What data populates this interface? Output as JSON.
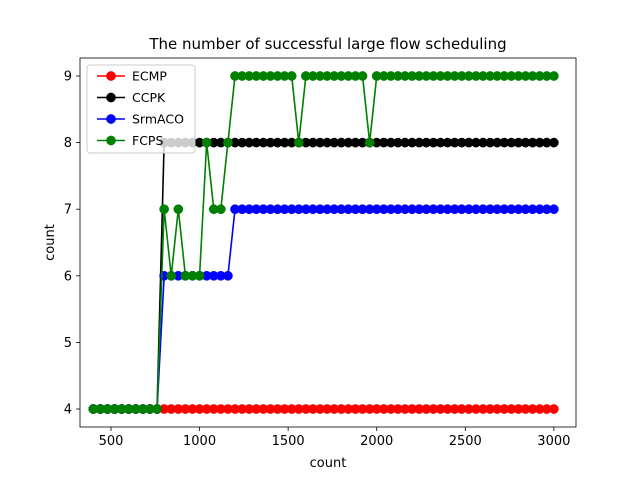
{
  "chart_data": {
    "type": "line",
    "title": "The number of successful large flow scheduling",
    "xlabel": "count",
    "ylabel": "count",
    "xlim": [
      325,
      3125
    ],
    "ylim": [
      3.73,
      9.27
    ],
    "xticks": [
      500,
      1000,
      1500,
      2000,
      2500,
      3000
    ],
    "yticks": [
      4,
      5,
      6,
      7,
      8,
      9
    ],
    "grid": false,
    "legend_position": "top-left",
    "x": [
      400,
      440,
      480,
      520,
      560,
      600,
      640,
      680,
      720,
      760,
      800,
      840,
      880,
      920,
      960,
      1000,
      1040,
      1080,
      1120,
      1160,
      1200,
      1240,
      1280,
      1320,
      1360,
      1400,
      1440,
      1480,
      1520,
      1560,
      1600,
      1640,
      1680,
      1720,
      1760,
      1800,
      1840,
      1880,
      1920,
      1960,
      2000,
      2040,
      2080,
      2120,
      2160,
      2200,
      2240,
      2280,
      2320,
      2360,
      2400,
      2440,
      2480,
      2520,
      2560,
      2600,
      2640,
      2680,
      2720,
      2760,
      2800,
      2840,
      2880,
      2920,
      2960,
      3000
    ],
    "series": [
      {
        "name": "ECMP",
        "color": "#ff0000",
        "values": [
          4,
          4,
          4,
          4,
          4,
          4,
          4,
          4,
          4,
          4,
          4,
          4,
          4,
          4,
          4,
          4,
          4,
          4,
          4,
          4,
          4,
          4,
          4,
          4,
          4,
          4,
          4,
          4,
          4,
          4,
          4,
          4,
          4,
          4,
          4,
          4,
          4,
          4,
          4,
          4,
          4,
          4,
          4,
          4,
          4,
          4,
          4,
          4,
          4,
          4,
          4,
          4,
          4,
          4,
          4,
          4,
          4,
          4,
          4,
          4,
          4,
          4,
          4,
          4,
          4,
          4
        ]
      },
      {
        "name": "CCPK",
        "color": "#000000",
        "values": [
          4,
          4,
          4,
          4,
          4,
          4,
          4,
          4,
          4,
          4,
          8,
          8,
          8,
          8,
          8,
          8,
          8,
          8,
          8,
          8,
          8,
          8,
          8,
          8,
          8,
          8,
          8,
          8,
          8,
          8,
          8,
          8,
          8,
          8,
          8,
          8,
          8,
          8,
          8,
          8,
          8,
          8,
          8,
          8,
          8,
          8,
          8,
          8,
          8,
          8,
          8,
          8,
          8,
          8,
          8,
          8,
          8,
          8,
          8,
          8,
          8,
          8,
          8,
          8,
          8,
          8
        ]
      },
      {
        "name": "SrmACO",
        "color": "#0000ff",
        "values": [
          4,
          4,
          4,
          4,
          4,
          4,
          4,
          4,
          4,
          4,
          6,
          6,
          6,
          6,
          6,
          6,
          6,
          6,
          6,
          6,
          7,
          7,
          7,
          7,
          7,
          7,
          7,
          7,
          7,
          7,
          7,
          7,
          7,
          7,
          7,
          7,
          7,
          7,
          7,
          7,
          7,
          7,
          7,
          7,
          7,
          7,
          7,
          7,
          7,
          7,
          7,
          7,
          7,
          7,
          7,
          7,
          7,
          7,
          7,
          7,
          7,
          7,
          7,
          7,
          7,
          7
        ]
      },
      {
        "name": "FCPS",
        "color": "#008000",
        "values": [
          4,
          4,
          4,
          4,
          4,
          4,
          4,
          4,
          4,
          4,
          7,
          6,
          7,
          6,
          6,
          6,
          8,
          7,
          7,
          8,
          9,
          9,
          9,
          9,
          9,
          9,
          9,
          9,
          9,
          8,
          9,
          9,
          9,
          9,
          9,
          9,
          9,
          9,
          9,
          8,
          9,
          9,
          9,
          9,
          9,
          9,
          9,
          9,
          9,
          9,
          9,
          9,
          9,
          9,
          9,
          9,
          9,
          9,
          9,
          9,
          9,
          9,
          9,
          9,
          9,
          9
        ]
      }
    ]
  }
}
